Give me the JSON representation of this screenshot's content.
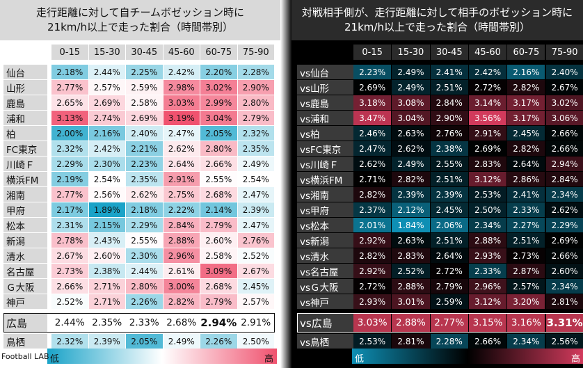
{
  "left_panel": {
    "title": "走行距離に対して自チームボゼッション時に\n21km/h以上で走った割合（時間帯別）",
    "legend_low": "低",
    "legend_high": "高",
    "footer": "Football LAB"
  },
  "right_panel": {
    "title": "対戦相手側が、走行距離に対して相手のボゼッション時に\n21km/h以上で走った割合（時間帯別）",
    "legend_low": "低",
    "legend_high": "高"
  },
  "chart_data": [
    {
      "type": "heatmap",
      "title": "走行距離に対して自チームボゼッション時に21km/h以上で走った割合（時間帯別）",
      "x": [
        "0-15",
        "15-30",
        "30-45",
        "45-60",
        "60-75",
        "75-90"
      ],
      "y": [
        "仙台",
        "山形",
        "鹿島",
        "浦和",
        "柏",
        "FC東京",
        "川崎Ｆ",
        "横浜FM",
        "湘南",
        "甲府",
        "松本",
        "新潟",
        "清水",
        "名古屋",
        "Ｇ大阪",
        "神戸",
        "広島",
        "鳥栖"
      ],
      "values": [
        [
          "2.18%",
          "2.44%",
          "2.25%",
          "2.42%",
          "2.20%",
          "2.28%"
        ],
        [
          "2.77%",
          "2.57%",
          "2.59%",
          "2.98%",
          "3.02%",
          "2.90%"
        ],
        [
          "2.65%",
          "2.69%",
          "2.58%",
          "3.03%",
          "2.99%",
          "2.80%"
        ],
        [
          "3.13%",
          "2.74%",
          "2.69%",
          "3.19%",
          "3.04%",
          "2.79%"
        ],
        [
          "2.00%",
          "2.16%",
          "2.40%",
          "2.47%",
          "2.05%",
          "2.32%"
        ],
        [
          "2.32%",
          "2.42%",
          "2.21%",
          "2.62%",
          "2.80%",
          "2.35%"
        ],
        [
          "2.29%",
          "2.30%",
          "2.23%",
          "2.64%",
          "2.66%",
          "2.49%"
        ],
        [
          "2.19%",
          "2.54%",
          "2.35%",
          "2.91%",
          "2.55%",
          "2.54%"
        ],
        [
          "2.77%",
          "2.56%",
          "2.62%",
          "2.75%",
          "2.68%",
          "2.47%"
        ],
        [
          "2.17%",
          "1.89%",
          "2.18%",
          "2.22%",
          "2.14%",
          "2.39%"
        ],
        [
          "2.31%",
          "2.15%",
          "2.29%",
          "2.84%",
          "2.79%",
          "2.47%"
        ],
        [
          "2.78%",
          "2.43%",
          "2.55%",
          "2.88%",
          "2.60%",
          "2.76%"
        ],
        [
          "2.67%",
          "2.60%",
          "2.30%",
          "2.96%",
          "2.58%",
          "2.52%"
        ],
        [
          "2.73%",
          "2.38%",
          "2.44%",
          "2.61%",
          "3.09%",
          "2.67%"
        ],
        [
          "2.66%",
          "2.71%",
          "2.80%",
          "3.00%",
          "2.68%",
          "2.45%"
        ],
        [
          "2.52%",
          "2.71%",
          "2.26%",
          "2.82%",
          "2.79%",
          "2.57%"
        ],
        [
          "2.44%",
          "2.35%",
          "2.33%",
          "2.68%",
          "2.94%",
          "2.91%"
        ],
        [
          "2.32%",
          "2.39%",
          "2.05%",
          "2.49%",
          "2.26%",
          "2.50%"
        ]
      ],
      "highlighted_team": "広島",
      "colors": {
        "low": "#1aa3c8",
        "mid": "#ffffff",
        "high": "#f0526f"
      },
      "legend": "bottom"
    },
    {
      "type": "heatmap",
      "title": "対戦相手側が、走行距離に対して相手のボゼッション時に21km/h以上で走った割合（時間帯別）",
      "x": [
        "0-15",
        "15-30",
        "30-45",
        "45-60",
        "60-75",
        "75-90"
      ],
      "y": [
        "vs仙台",
        "vs山形",
        "vs鹿島",
        "vs浦和",
        "vs柏",
        "vsFC東京",
        "vs川崎Ｆ",
        "vs横浜FM",
        "vs湘南",
        "vs甲府",
        "vs松本",
        "vs新潟",
        "vs清水",
        "vs名古屋",
        "vsＧ大阪",
        "vs神戸",
        "vs広島",
        "vs鳥栖"
      ],
      "values": [
        [
          "2.23%",
          "2.49%",
          "2.41%",
          "2.42%",
          "2.16%",
          "2.40%"
        ],
        [
          "2.69%",
          "2.49%",
          "2.51%",
          "2.72%",
          "2.82%",
          "2.67%"
        ],
        [
          "3.18%",
          "3.08%",
          "2.84%",
          "3.14%",
          "3.17%",
          "3.02%"
        ],
        [
          "3.47%",
          "3.04%",
          "2.90%",
          "3.56%",
          "3.17%",
          "3.06%"
        ],
        [
          "2.46%",
          "2.63%",
          "2.76%",
          "2.91%",
          "2.45%",
          "2.66%"
        ],
        [
          "2.47%",
          "2.62%",
          "2.38%",
          "2.69%",
          "2.82%",
          "2.66%"
        ],
        [
          "2.62%",
          "2.49%",
          "2.55%",
          "2.83%",
          "2.64%",
          "2.94%"
        ],
        [
          "2.71%",
          "2.82%",
          "2.51%",
          "3.12%",
          "2.86%",
          "2.84%"
        ],
        [
          "2.82%",
          "2.39%",
          "2.39%",
          "2.53%",
          "2.41%",
          "2.34%"
        ],
        [
          "2.37%",
          "2.12%",
          "2.45%",
          "2.50%",
          "2.33%",
          "2.62%"
        ],
        [
          "2.01%",
          "1.84%",
          "2.06%",
          "2.34%",
          "2.27%",
          "2.29%"
        ],
        [
          "2.92%",
          "2.63%",
          "2.51%",
          "2.88%",
          "2.51%",
          "2.69%"
        ],
        [
          "2.82%",
          "2.83%",
          "2.64%",
          "2.93%",
          "2.73%",
          "2.66%"
        ],
        [
          "2.92%",
          "2.52%",
          "2.72%",
          "2.33%",
          "2.87%",
          "2.60%"
        ],
        [
          "2.72%",
          "2.88%",
          "2.79%",
          "2.96%",
          "2.57%",
          "2.34%"
        ],
        [
          "2.93%",
          "3.01%",
          "2.59%",
          "3.12%",
          "3.20%",
          "2.81%"
        ],
        [
          "3.03%",
          "2.88%",
          "2.77%",
          "3.15%",
          "3.16%",
          "3.31%"
        ],
        [
          "2.53%",
          "2.81%",
          "2.28%",
          "2.66%",
          "2.34%",
          "2.56%"
        ]
      ],
      "highlighted_team": "vs広島",
      "colors": {
        "low": "#0e8fb4",
        "mid": "#000000",
        "high": "#d23a5c"
      },
      "legend": "bottom"
    }
  ]
}
